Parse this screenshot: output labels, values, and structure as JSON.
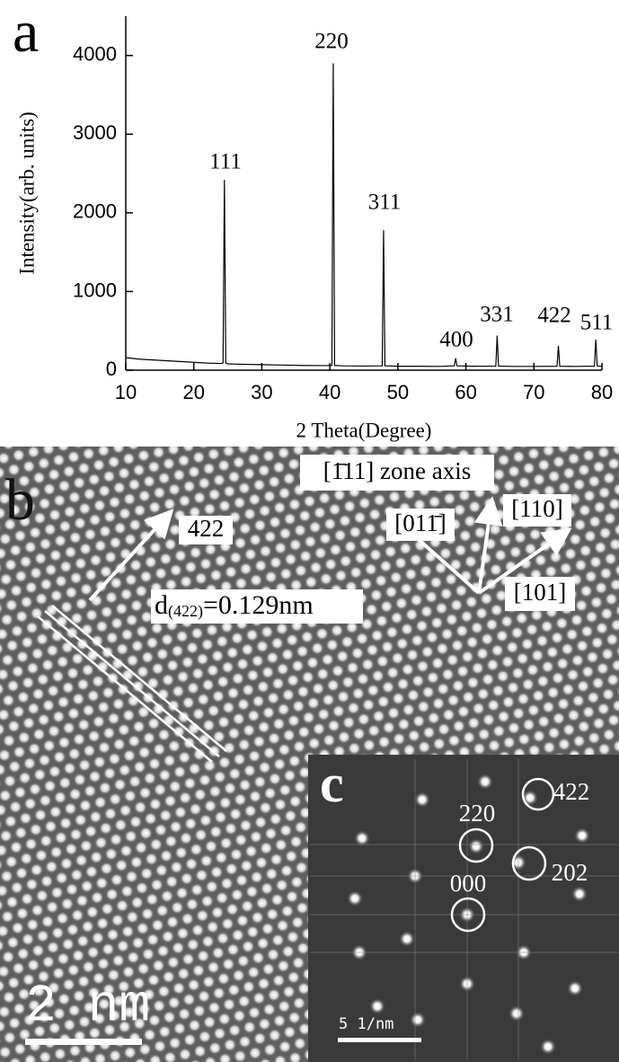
{
  "chart_data": {
    "type": "line",
    "panel_label": "a",
    "x_label": "2 Theta(Degree)",
    "y_label": "Intensity(arb. units)",
    "x": [
      10,
      12,
      14,
      16,
      18,
      20,
      22,
      24,
      24.3,
      24.5,
      24.7,
      25,
      27,
      30,
      33,
      36,
      39,
      40.3,
      40.5,
      40.7,
      42,
      45,
      47.7,
      47.9,
      48.1,
      50,
      53,
      56,
      58.3,
      58.5,
      58.7,
      61,
      64.4,
      64.6,
      64.8,
      67,
      70,
      73.4,
      73.6,
      73.8,
      76,
      78.9,
      79.1,
      79.3,
      80
    ],
    "values": [
      160,
      140,
      130,
      120,
      110,
      100,
      90,
      85,
      90,
      2420,
      90,
      80,
      75,
      70,
      65,
      60,
      58,
      60,
      3900,
      60,
      55,
      52,
      55,
      1780,
      55,
      50,
      50,
      48,
      55,
      150,
      55,
      50,
      52,
      440,
      52,
      48,
      48,
      50,
      310,
      50,
      48,
      52,
      390,
      52,
      50
    ],
    "color": "#000000",
    "xlim": [
      10,
      80
    ],
    "xticks": [
      10,
      20,
      30,
      40,
      50,
      60,
      70,
      80
    ],
    "ylim": [
      0,
      4500
    ],
    "yticks": [
      0,
      1000,
      2000,
      3000,
      4000
    ],
    "grid": false,
    "annotations": [
      "111",
      "220",
      "311",
      "400",
      "331",
      "422",
      "511"
    ]
  },
  "panel_b": {
    "label": "b",
    "zone_axis": "[1̄11] zone axis",
    "plane": "422",
    "d_symbol": "d",
    "d_subscript": "(422)",
    "d_value": "=0.129nm",
    "dir_110": "[110]",
    "dir_01-1": "[011̄]",
    "dir_101": "[101]",
    "scale_bar": "2 nm"
  },
  "panel_c": {
    "label": "c",
    "spot_220": "220",
    "spot_422": "422",
    "spot_000": "000",
    "spot_202": "202",
    "scale_bar": "5 1/nm"
  }
}
